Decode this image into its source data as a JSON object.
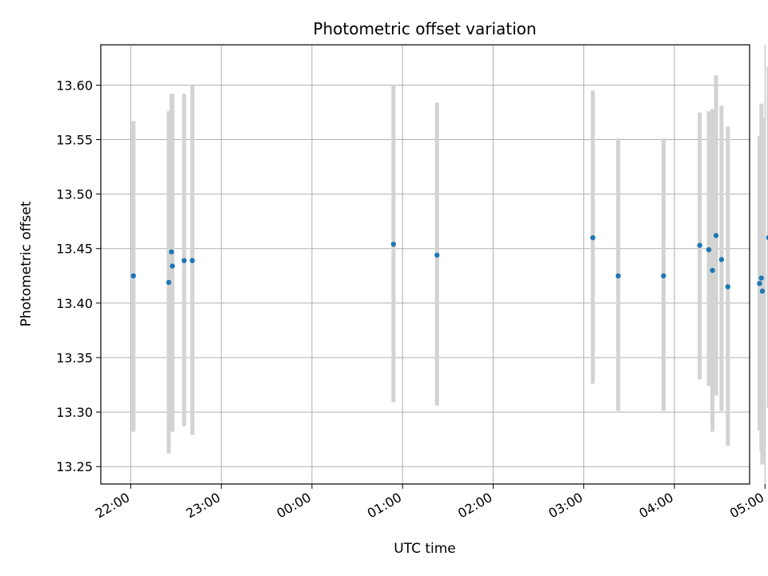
{
  "chart_data": {
    "type": "scatter",
    "title": "Photometric offset variation",
    "xlabel": "UTC time",
    "ylabel": "Photometric offset",
    "x_unit": "hours after 22:00 UTC",
    "x_range": [
      -0.33,
      6.83
    ],
    "ylim": [
      13.234,
      13.637
    ],
    "grid": true,
    "colors": {
      "point": "#1f77b4",
      "errorbar": "#d3d3d3",
      "grid": "#b0b0b0",
      "axis": "#000000"
    },
    "x_ticks": [
      {
        "value": 0,
        "label": "22:00"
      },
      {
        "value": 1,
        "label": "23:00"
      },
      {
        "value": 2,
        "label": "00:00"
      },
      {
        "value": 3,
        "label": "01:00"
      },
      {
        "value": 4,
        "label": "02:00"
      },
      {
        "value": 5,
        "label": "03:00"
      },
      {
        "value": 6,
        "label": "04:00"
      },
      {
        "value": 7,
        "label": "05:00"
      }
    ],
    "y_ticks": [
      {
        "value": 13.25,
        "label": "13.25"
      },
      {
        "value": 13.3,
        "label": "13.30"
      },
      {
        "value": 13.35,
        "label": "13.35"
      },
      {
        "value": 13.4,
        "label": "13.40"
      },
      {
        "value": 13.45,
        "label": "13.45"
      },
      {
        "value": 13.5,
        "label": "13.50"
      },
      {
        "value": 13.55,
        "label": "13.55"
      },
      {
        "value": 13.6,
        "label": "13.60"
      }
    ],
    "points": [
      {
        "x": 0.03,
        "y": 13.425,
        "low": 13.282,
        "high": 13.567
      },
      {
        "x": 0.42,
        "y": 13.419,
        "low": 13.262,
        "high": 13.576
      },
      {
        "x": 0.45,
        "y": 13.447,
        "low": 13.282,
        "high": 13.592
      },
      {
        "x": 0.46,
        "y": 13.434,
        "low": 13.282,
        "high": 13.592
      },
      {
        "x": 0.59,
        "y": 13.439,
        "low": 13.287,
        "high": 13.592
      },
      {
        "x": 0.68,
        "y": 13.439,
        "low": 13.279,
        "high": 13.6
      },
      {
        "x": 2.9,
        "y": 13.454,
        "low": 13.309,
        "high": 13.6
      },
      {
        "x": 3.38,
        "y": 13.444,
        "low": 13.306,
        "high": 13.584
      },
      {
        "x": 5.1,
        "y": 13.46,
        "low": 13.326,
        "high": 13.595
      },
      {
        "x": 5.38,
        "y": 13.425,
        "low": 13.301,
        "high": 13.551
      },
      {
        "x": 5.88,
        "y": 13.425,
        "low": 13.301,
        "high": 13.551
      },
      {
        "x": 6.28,
        "y": 13.453,
        "low": 13.33,
        "high": 13.575
      },
      {
        "x": 6.38,
        "y": 13.449,
        "low": 13.324,
        "high": 13.576
      },
      {
        "x": 6.42,
        "y": 13.43,
        "low": 13.282,
        "high": 13.578
      },
      {
        "x": 6.46,
        "y": 13.462,
        "low": 13.315,
        "high": 13.609
      },
      {
        "x": 6.52,
        "y": 13.44,
        "low": 13.301,
        "high": 13.581
      },
      {
        "x": 6.59,
        "y": 13.415,
        "low": 13.269,
        "high": 13.562
      },
      {
        "x": 6.94,
        "y": 13.418,
        "low": 13.283,
        "high": 13.553
      },
      {
        "x": 6.96,
        "y": 13.423,
        "low": 13.264,
        "high": 13.583
      },
      {
        "x": 6.97,
        "y": 13.411,
        "low": 13.252,
        "high": 13.57
      },
      {
        "x": 7.04,
        "y": 13.46,
        "low": 13.304,
        "high": 13.617
      }
    ]
  }
}
